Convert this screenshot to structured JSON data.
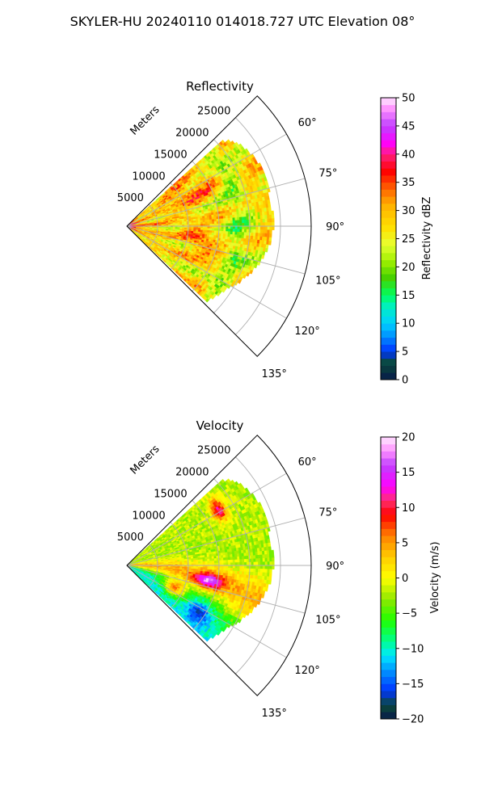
{
  "title": "SKYLER-HU  20240110  014018.727 UTC Elevation 08°",
  "chart_data": [
    {
      "type": "heatmap",
      "subtype": "radar-ppi-sector",
      "title": "Reflectivity",
      "radial_axis_label": "Meters",
      "radial_ticks": [
        5000,
        10000,
        15000,
        20000,
        25000
      ],
      "radial_tick_labels": [
        "5000",
        "10000",
        "15000",
        "20000",
        "25000"
      ],
      "radial_max": 30000,
      "azimuth_range_deg": [
        45,
        135
      ],
      "azimuth_ticks": [
        60,
        75,
        90,
        105,
        120,
        135
      ],
      "azimuth_tick_labels": [
        "60°",
        "75°",
        "90°",
        "105°",
        "120°",
        "135°"
      ],
      "data_extent_m": 23000,
      "grid": true,
      "colorbar": {
        "label": "Reflectivity dBZ",
        "vmin": 0,
        "vmax": 50,
        "ticks": [
          0,
          5,
          10,
          15,
          20,
          25,
          30,
          35,
          40,
          45,
          50
        ],
        "tick_labels": [
          "0",
          "5",
          "10",
          "15",
          "20",
          "25",
          "30",
          "35",
          "40",
          "45",
          "50"
        ],
        "stops": [
          [
            0,
            "#081a4a"
          ],
          [
            3,
            "#0a4a3a"
          ],
          [
            5,
            "#0033ff"
          ],
          [
            8,
            "#0099ff"
          ],
          [
            10,
            "#00d0ff"
          ],
          [
            13,
            "#00f0c0"
          ],
          [
            15,
            "#00ff60"
          ],
          [
            18,
            "#44d000"
          ],
          [
            21,
            "#9ef000"
          ],
          [
            24,
            "#e8ff30"
          ],
          [
            27,
            "#ffe000"
          ],
          [
            31,
            "#ffb000"
          ],
          [
            34,
            "#ff6000"
          ],
          [
            37,
            "#ff0000"
          ],
          [
            40,
            "#ff2080"
          ],
          [
            42,
            "#ff00ff"
          ],
          [
            45,
            "#c040ff"
          ],
          [
            48,
            "#ff90ff"
          ],
          [
            50,
            "#ffe8ff"
          ]
        ]
      },
      "field_stats": {
        "typical": 29,
        "variability": 8
      }
    },
    {
      "type": "heatmap",
      "subtype": "radar-ppi-sector",
      "title": "Velocity",
      "radial_axis_label": "Meters",
      "radial_ticks": [
        5000,
        10000,
        15000,
        20000,
        25000
      ],
      "radial_tick_labels": [
        "5000",
        "10000",
        "15000",
        "20000",
        "25000"
      ],
      "radial_max": 30000,
      "azimuth_range_deg": [
        45,
        135
      ],
      "azimuth_ticks": [
        60,
        75,
        90,
        105,
        120,
        135
      ],
      "azimuth_tick_labels": [
        "60°",
        "75°",
        "90°",
        "105°",
        "120°",
        "135°"
      ],
      "data_extent_m": 23000,
      "grid": true,
      "colorbar": {
        "label": "Velocity (m/s)",
        "vmin": -20,
        "vmax": 20,
        "ticks": [
          -20,
          -15,
          -10,
          -5,
          0,
          5,
          10,
          15,
          20
        ],
        "tick_labels": [
          "−20",
          "−15",
          "−10",
          "−5",
          "0",
          "5",
          "10",
          "15",
          "20"
        ],
        "stops": [
          [
            -20,
            "#081a4a"
          ],
          [
            -18,
            "#0a4a3a"
          ],
          [
            -16,
            "#0033ff"
          ],
          [
            -13,
            "#0099ff"
          ],
          [
            -11,
            "#00e8ff"
          ],
          [
            -9,
            "#00ff90"
          ],
          [
            -6,
            "#20ff00"
          ],
          [
            -3,
            "#90e800"
          ],
          [
            0,
            "#ffff00"
          ],
          [
            3,
            "#ffcc00"
          ],
          [
            6,
            "#ff8000"
          ],
          [
            9,
            "#ff0000"
          ],
          [
            11,
            "#ff3070"
          ],
          [
            13,
            "#ff00ff"
          ],
          [
            16,
            "#c040ff"
          ],
          [
            18,
            "#ff90ff"
          ],
          [
            20,
            "#ffe8ff"
          ]
        ]
      },
      "field_stats": {
        "near_beam_high": 15,
        "far_low": -9
      }
    }
  ]
}
